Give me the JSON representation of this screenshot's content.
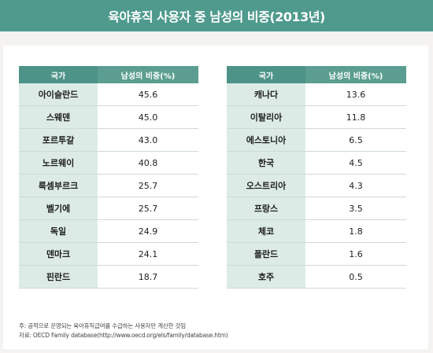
{
  "title": "육아휴직 사용자 중 남성의 비중(2013년)",
  "colors": {
    "header_bg": "#4f9a8d",
    "country_cell_bg": "#dcebe6"
  },
  "table": {
    "headers": {
      "country": "국가",
      "share": "남성의 비중(%)"
    },
    "left_rows": [
      {
        "country": "아이슬란드",
        "value": "45.6"
      },
      {
        "country": "스웨덴",
        "value": "45.0"
      },
      {
        "country": "포르투갈",
        "value": "43.0"
      },
      {
        "country": "노르웨이",
        "value": "40.8"
      },
      {
        "country": "룩셈부르크",
        "value": "25.7"
      },
      {
        "country": "벨기에",
        "value": "25.7"
      },
      {
        "country": "독일",
        "value": "24.9"
      },
      {
        "country": "덴마크",
        "value": "24.1"
      },
      {
        "country": "핀란드",
        "value": "18.7"
      }
    ],
    "right_rows": [
      {
        "country": "캐나다",
        "value": "13.6"
      },
      {
        "country": "이탈리아",
        "value": "11.8"
      },
      {
        "country": "에스토니아",
        "value": "6.5"
      },
      {
        "country": "한국",
        "value": "4.5"
      },
      {
        "country": "오스트리아",
        "value": "4.3"
      },
      {
        "country": "프랑스",
        "value": "3.5"
      },
      {
        "country": "체코",
        "value": "1.8"
      },
      {
        "country": "폴란드",
        "value": "1.6"
      },
      {
        "country": "호주",
        "value": "0.5"
      }
    ]
  },
  "notes": {
    "note": "주: 공적으로 운영되는 육아휴직급여를 수급하는 사용자만 계산한 것임",
    "source": "자료: OECD Family database(http://www.oecd.org/els/family/database.htm)"
  }
}
